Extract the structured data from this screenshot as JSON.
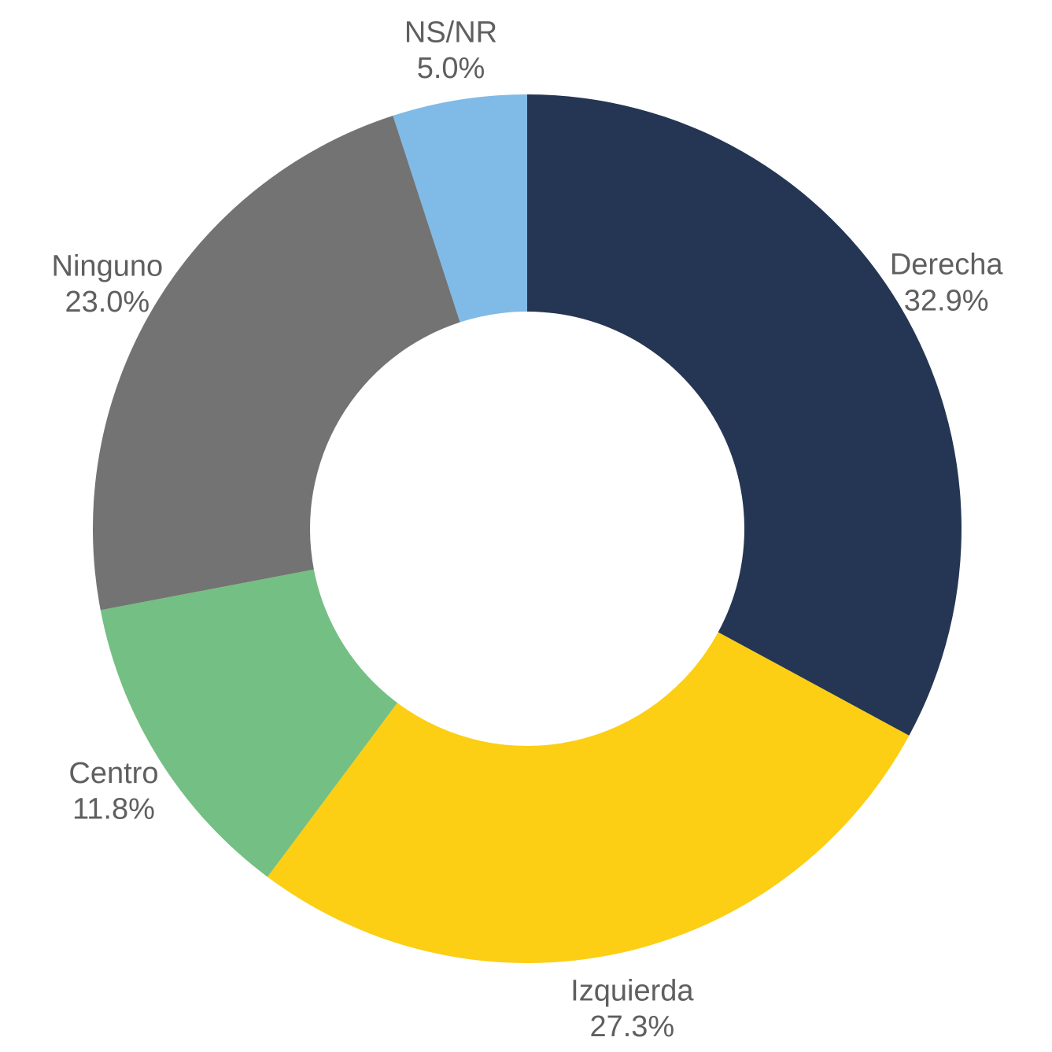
{
  "chart_data": {
    "type": "pie",
    "donut": true,
    "title": "",
    "slices": [
      {
        "label": "Derecha",
        "value": 32.9,
        "value_label": "32.9%",
        "color": "#253654"
      },
      {
        "label": "Izquierda",
        "value": 27.3,
        "value_label": "27.3%",
        "color": "#FCCE14"
      },
      {
        "label": "Centro",
        "value": 11.8,
        "value_label": "11.8%",
        "color": "#74BF83"
      },
      {
        "label": "Ninguno",
        "value": 23.0,
        "value_label": "23.0%",
        "color": "#737373"
      },
      {
        "label": "NS/NR",
        "value": 5.0,
        "value_label": "5.0%",
        "color": "#80BAE7"
      }
    ],
    "legend": "none",
    "label_color": "#5f5f5f"
  }
}
